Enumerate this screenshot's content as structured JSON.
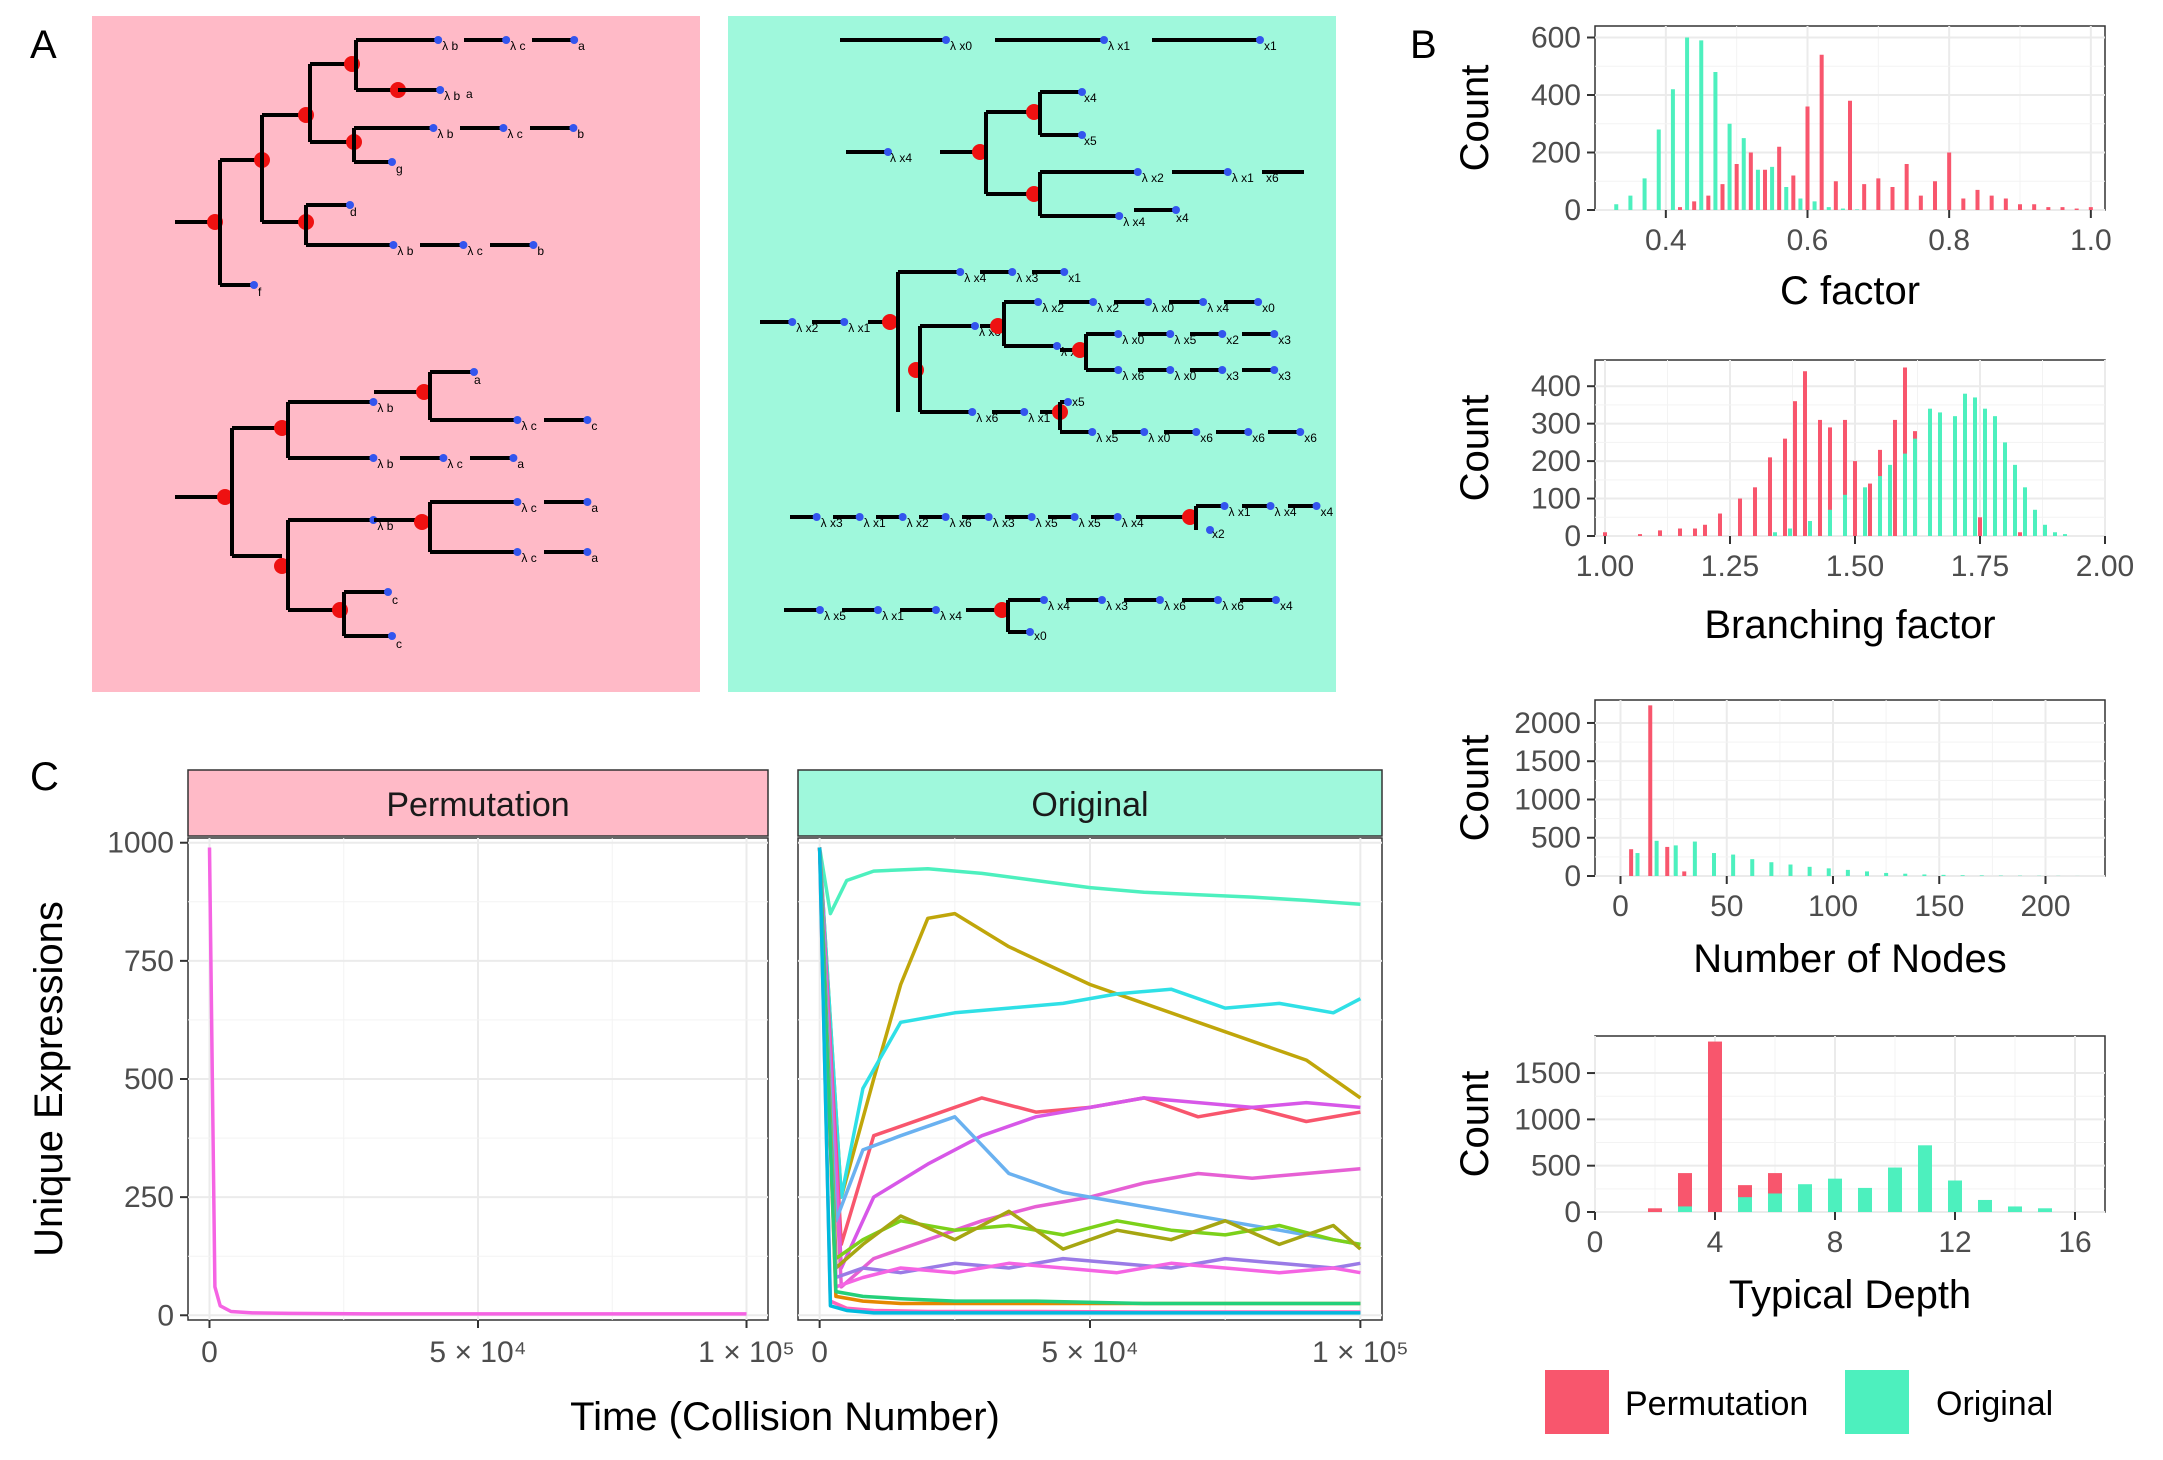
{
  "panel_labels": {
    "a": "A",
    "b": "B",
    "c": "C"
  },
  "colors": {
    "permutation": "#F8566D",
    "original": "#4DF0BE",
    "bg_permutation": "#FFBAC7",
    "bg_original": "#9FF8DC",
    "strip_permutation": "#FFBAC7",
    "strip_original": "#9FF8DC",
    "node": "#EE1111",
    "leaf_dot": "#3355EE"
  },
  "tree_labels": {
    "lambda_b": "λ b",
    "lambda_c": "λ c",
    "a": "a",
    "b": "b",
    "c": "c",
    "d": "d",
    "f": "f",
    "g": "g",
    "x0": "x0",
    "x1": "x1",
    "x2": "x2",
    "x3": "x3",
    "x4": "x4",
    "x5": "x5",
    "x6": "x6",
    "lx0": "λ x0",
    "lx1": "λ x1",
    "lx2": "λ x2",
    "lx3": "λ x3",
    "lx4": "λ x4",
    "lx5": "λ x5",
    "lx6": "λ x6"
  },
  "chart_data": [
    {
      "type": "bar",
      "xlabel": "C factor",
      "ylabel": "Count",
      "xlim": [
        0.3,
        1.02
      ],
      "ylim": [
        0,
        640
      ],
      "xticks": [
        "0.4",
        "0.6",
        "0.8",
        "1.0"
      ],
      "xtick_values": [
        0.4,
        0.6,
        0.8,
        1.0
      ],
      "yticks": [
        "0",
        "200",
        "400",
        "600"
      ],
      "ytick_values": [
        0,
        200,
        400,
        600
      ],
      "series": [
        {
          "name": "Permutation",
          "x": [
            0.34,
            0.36,
            0.38,
            0.4,
            0.42,
            0.44,
            0.46,
            0.48,
            0.5,
            0.52,
            0.54,
            0.56,
            0.58,
            0.6,
            0.62,
            0.64,
            0.66,
            0.68,
            0.7,
            0.72,
            0.74,
            0.76,
            0.78,
            0.8,
            0.82,
            0.84,
            0.86,
            0.88,
            0.9,
            0.92,
            0.94,
            0.96,
            0.98,
            1.0
          ],
          "values": [
            0,
            0,
            0,
            0,
            10,
            30,
            50,
            90,
            160,
            200,
            140,
            220,
            120,
            360,
            540,
            100,
            380,
            90,
            110,
            80,
            160,
            50,
            100,
            200,
            40,
            70,
            50,
            40,
            20,
            20,
            10,
            10,
            5,
            10
          ]
        },
        {
          "name": "Original",
          "x": [
            0.33,
            0.35,
            0.37,
            0.39,
            0.41,
            0.43,
            0.45,
            0.47,
            0.49,
            0.51,
            0.53,
            0.55,
            0.57,
            0.59,
            0.61,
            0.63,
            0.65,
            0.67
          ],
          "values": [
            20,
            50,
            110,
            280,
            420,
            600,
            590,
            480,
            300,
            250,
            140,
            150,
            80,
            40,
            30,
            10,
            5,
            2
          ]
        }
      ]
    },
    {
      "type": "bar",
      "xlabel": "Branching factor",
      "ylabel": "Count",
      "xlim": [
        0.98,
        2.0
      ],
      "ylim": [
        0,
        470
      ],
      "xticks": [
        "1.00",
        "1.25",
        "1.50",
        "1.75",
        "2.00"
      ],
      "xtick_values": [
        1.0,
        1.25,
        1.5,
        1.75,
        2.0
      ],
      "yticks": [
        "0",
        "100",
        "200",
        "300",
        "400"
      ],
      "ytick_values": [
        0,
        100,
        200,
        300,
        400
      ],
      "series": [
        {
          "name": "Permutation",
          "x": [
            1.0,
            1.07,
            1.11,
            1.15,
            1.18,
            1.2,
            1.23,
            1.27,
            1.3,
            1.33,
            1.36,
            1.38,
            1.4,
            1.43,
            1.45,
            1.48,
            1.5,
            1.53,
            1.55,
            1.58,
            1.6,
            1.62,
            1.65,
            1.67,
            1.7,
            1.72,
            1.75,
            1.78,
            1.8,
            1.83
          ],
          "values": [
            10,
            5,
            15,
            20,
            20,
            30,
            60,
            100,
            130,
            210,
            260,
            360,
            440,
            310,
            290,
            310,
            200,
            140,
            230,
            310,
            450,
            280,
            170,
            90,
            70,
            60,
            50,
            40,
            20,
            10
          ]
        },
        {
          "name": "Original",
          "x": [
            1.34,
            1.37,
            1.41,
            1.45,
            1.48,
            1.52,
            1.55,
            1.57,
            1.6,
            1.62,
            1.65,
            1.67,
            1.7,
            1.72,
            1.74,
            1.76,
            1.78,
            1.8,
            1.82,
            1.84,
            1.86,
            1.88,
            1.9,
            1.92
          ],
          "values": [
            10,
            20,
            40,
            70,
            110,
            130,
            160,
            190,
            220,
            260,
            340,
            330,
            320,
            380,
            370,
            340,
            320,
            250,
            190,
            130,
            70,
            30,
            10,
            5
          ]
        }
      ]
    },
    {
      "type": "bar",
      "xlabel": "Number of Nodes",
      "ylabel": "Count",
      "xlim": [
        -12,
        228
      ],
      "ylim": [
        0,
        2300
      ],
      "xticks": [
        "0",
        "50",
        "100",
        "150",
        "200"
      ],
      "xtick_values": [
        0,
        50,
        100,
        150,
        200
      ],
      "yticks": [
        "0",
        "500",
        "1000",
        "1500",
        "2000"
      ],
      "ytick_values": [
        0,
        500,
        1000,
        1500,
        2000
      ],
      "series": [
        {
          "name": "Permutation",
          "x": [
            5,
            14,
            22,
            30
          ],
          "values": [
            350,
            2230,
            380,
            60
          ]
        },
        {
          "name": "Original",
          "x": [
            8,
            17,
            26,
            35,
            44,
            53,
            62,
            71,
            80,
            89,
            98,
            107,
            116,
            125,
            134,
            143,
            152,
            161,
            170,
            179,
            188,
            197,
            206,
            215
          ],
          "values": [
            300,
            460,
            400,
            450,
            300,
            280,
            220,
            180,
            150,
            120,
            100,
            80,
            60,
            40,
            30,
            20,
            15,
            10,
            8,
            5,
            4,
            3,
            2,
            1
          ]
        }
      ]
    },
    {
      "type": "bar",
      "xlabel": "Typical Depth",
      "ylabel": "Count",
      "xlim": [
        0,
        17
      ],
      "ylim": [
        0,
        1900
      ],
      "xticks": [
        "0",
        "4",
        "8",
        "12",
        "16"
      ],
      "xtick_values": [
        0,
        4,
        8,
        12,
        16
      ],
      "yticks": [
        "0",
        "500",
        "1000",
        "1500"
      ],
      "ytick_values": [
        0,
        500,
        1000,
        1500
      ],
      "series": [
        {
          "name": "Permutation",
          "x": [
            2,
            3,
            4,
            5,
            6
          ],
          "values": [
            40,
            420,
            1840,
            290,
            420
          ]
        },
        {
          "name": "Original",
          "x": [
            3,
            5,
            6,
            7,
            8,
            9,
            10,
            11,
            12,
            13,
            14,
            15
          ],
          "values": [
            60,
            160,
            200,
            300,
            360,
            260,
            480,
            720,
            340,
            130,
            60,
            40
          ]
        }
      ]
    },
    {
      "type": "line",
      "facets": [
        "Permutation",
        "Original"
      ],
      "xlabel": "Time (Collision Number)",
      "ylabel": "Unique Expressions",
      "xlim": [
        -4000,
        104000
      ],
      "ylim": [
        -10,
        1010
      ],
      "xticks": [
        "0",
        "5 × 10⁴",
        "1 × 10⁵"
      ],
      "xtick_values": [
        0,
        50000,
        100000
      ],
      "yticks": [
        "0",
        "250",
        "500",
        "750",
        "1000"
      ],
      "ytick_values": [
        0,
        250,
        500,
        750,
        1000
      ],
      "series": [
        {
          "facet": "Permutation",
          "color": "#F564E3",
          "x": [
            0,
            1000,
            2000,
            4000,
            8000,
            15000,
            30000,
            60000,
            100000
          ],
          "values": [
            990,
            60,
            20,
            8,
            5,
            4,
            3,
            3,
            3
          ]
        },
        {
          "facet": "Original",
          "color": "#4DF0BE",
          "x": [
            0,
            2000,
            5000,
            10000,
            20000,
            30000,
            40000,
            50000,
            60000,
            70000,
            80000,
            90000,
            100000
          ],
          "values": [
            990,
            850,
            920,
            940,
            945,
            935,
            920,
            905,
            895,
            890,
            885,
            878,
            870
          ]
        },
        {
          "facet": "Original",
          "color": "#C0A60A",
          "x": [
            0,
            4000,
            10000,
            15000,
            20000,
            25000,
            35000,
            50000,
            70000,
            90000,
            100000
          ],
          "values": [
            990,
            250,
            500,
            700,
            840,
            850,
            780,
            700,
            620,
            540,
            460
          ]
        },
        {
          "facet": "Original",
          "color": "#2FE0E6",
          "x": [
            0,
            4000,
            8000,
            15000,
            25000,
            35000,
            45000,
            55000,
            65000,
            75000,
            85000,
            95000,
            100000
          ],
          "values": [
            990,
            250,
            480,
            620,
            640,
            650,
            660,
            680,
            690,
            650,
            660,
            640,
            670
          ]
        },
        {
          "facet": "Original",
          "color": "#F8566D",
          "x": [
            0,
            4000,
            10000,
            20000,
            30000,
            40000,
            50000,
            60000,
            70000,
            80000,
            90000,
            100000
          ],
          "values": [
            990,
            150,
            380,
            420,
            460,
            430,
            440,
            460,
            420,
            440,
            410,
            430
          ]
        },
        {
          "facet": "Original",
          "color": "#D757E8",
          "x": [
            0,
            4000,
            10000,
            20000,
            30000,
            40000,
            50000,
            60000,
            70000,
            80000,
            90000,
            100000
          ],
          "values": [
            990,
            100,
            250,
            320,
            380,
            420,
            440,
            460,
            450,
            440,
            450,
            440
          ]
        },
        {
          "facet": "Original",
          "color": "#E660D4",
          "x": [
            0,
            4000,
            10000,
            20000,
            30000,
            40000,
            50000,
            60000,
            70000,
            80000,
            90000,
            100000
          ],
          "values": [
            990,
            60,
            120,
            160,
            200,
            230,
            250,
            280,
            300,
            290,
            300,
            310
          ]
        },
        {
          "facet": "Original",
          "color": "#6AB1F0",
          "x": [
            0,
            3000,
            8000,
            15000,
            25000,
            35000,
            45000,
            55000,
            65000,
            75000,
            85000,
            95000,
            100000
          ],
          "values": [
            990,
            200,
            350,
            380,
            420,
            300,
            260,
            240,
            220,
            200,
            180,
            160,
            150
          ]
        },
        {
          "facet": "Original",
          "color": "#7CD11A",
          "x": [
            0,
            3000,
            8000,
            15000,
            25000,
            35000,
            45000,
            55000,
            65000,
            75000,
            85000,
            95000,
            100000
          ],
          "values": [
            990,
            120,
            160,
            200,
            180,
            190,
            170,
            200,
            180,
            170,
            190,
            160,
            150
          ]
        },
        {
          "facet": "Original",
          "color": "#A6A612",
          "x": [
            0,
            3000,
            8000,
            15000,
            25000,
            35000,
            45000,
            55000,
            65000,
            75000,
            85000,
            95000,
            100000
          ],
          "values": [
            990,
            100,
            150,
            210,
            160,
            220,
            140,
            180,
            160,
            200,
            150,
            190,
            140
          ]
        },
        {
          "facet": "Original",
          "color": "#9A7BE6",
          "x": [
            0,
            3000,
            8000,
            15000,
            25000,
            35000,
            45000,
            55000,
            65000,
            75000,
            85000,
            95000,
            100000
          ],
          "values": [
            990,
            80,
            100,
            90,
            110,
            100,
            120,
            110,
            100,
            120,
            110,
            100,
            110
          ]
        },
        {
          "facet": "Original",
          "color": "#F564E3",
          "x": [
            0,
            3000,
            8000,
            15000,
            25000,
            35000,
            45000,
            55000,
            65000,
            75000,
            85000,
            95000,
            100000
          ],
          "values": [
            990,
            60,
            80,
            100,
            90,
            110,
            100,
            90,
            110,
            100,
            90,
            100,
            90
          ]
        },
        {
          "facet": "Original",
          "color": "#E58700",
          "x": [
            0,
            3000,
            8000,
            15000,
            25000,
            40000,
            60000,
            80000,
            100000
          ],
          "values": [
            990,
            40,
            30,
            25,
            25,
            25,
            25,
            25,
            25
          ]
        },
        {
          "facet": "Original",
          "color": "#24D07A",
          "x": [
            0,
            3000,
            8000,
            15000,
            25000,
            40000,
            60000,
            80000,
            100000
          ],
          "values": [
            990,
            50,
            40,
            35,
            30,
            30,
            25,
            25,
            25
          ]
        },
        {
          "facet": "Original",
          "color": "#FF62BC",
          "x": [
            0,
            2000,
            5000,
            10000,
            20000,
            40000,
            60000,
            80000,
            100000
          ],
          "values": [
            990,
            30,
            15,
            10,
            8,
            8,
            7,
            7,
            7
          ]
        },
        {
          "facet": "Original",
          "color": "#00BADE",
          "x": [
            0,
            2000,
            5000,
            10000,
            20000,
            40000,
            60000,
            80000,
            100000
          ],
          "values": [
            990,
            20,
            10,
            5,
            5,
            5,
            5,
            5,
            5
          ]
        }
      ]
    }
  ],
  "legend": {
    "permutation": "Permutation",
    "original": "Original"
  }
}
